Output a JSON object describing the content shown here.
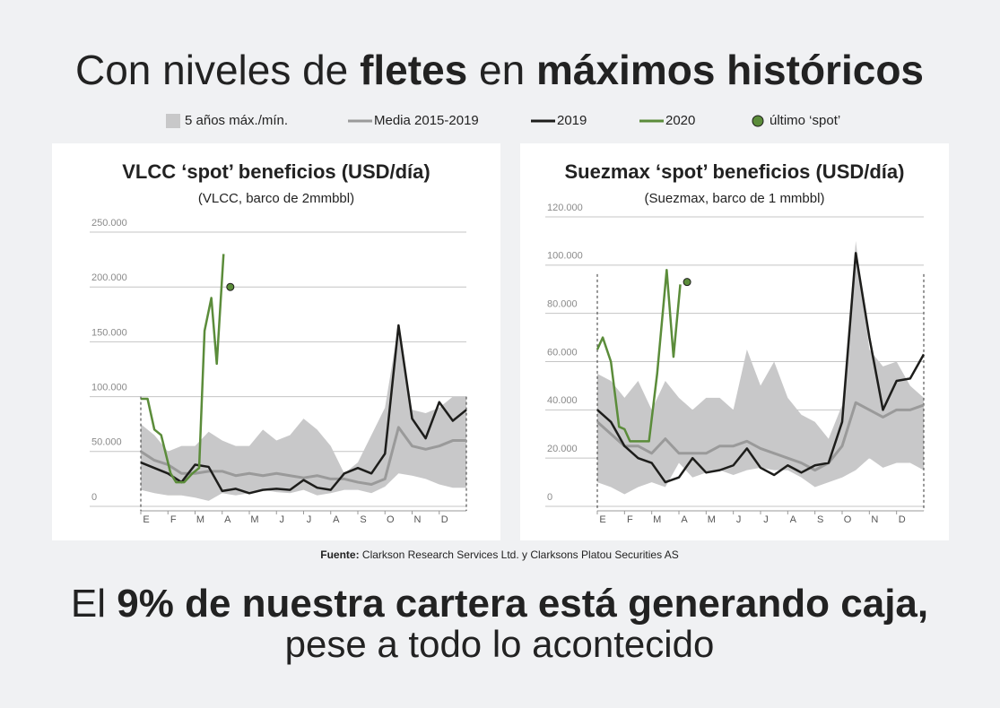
{
  "title": {
    "parts": [
      "Con niveles de ",
      "fletes",
      " en ",
      "máximos históricos"
    ]
  },
  "legend": [
    {
      "label": "5 años máx./mín.",
      "color": "#c8c8c9"
    },
    {
      "label": "Media 2015-2019",
      "color": "#9a9a9a"
    },
    {
      "label": "2019",
      "color": "#1d1d1b"
    },
    {
      "label": "2020",
      "color": "#5b8c3a"
    },
    {
      "label": "último ‘spot’",
      "color": "#5b8c3a"
    }
  ],
  "chart_data": [
    {
      "type": "line",
      "title": "VLCC ‘spot’ beneficios (USD/día)",
      "subtitle": "(VLCC, barco de 2mmbbl)",
      "xlim": [
        0,
        12
      ],
      "xticks": [
        {
          "value": 0,
          "label": "E"
        },
        {
          "value": 1,
          "label": "F"
        },
        {
          "value": 2,
          "label": "M"
        },
        {
          "value": 3,
          "label": "A"
        },
        {
          "value": 4,
          "label": "M"
        },
        {
          "value": 5,
          "label": "J"
        },
        {
          "value": 6,
          "label": "J"
        },
        {
          "value": 7,
          "label": "A"
        },
        {
          "value": 8,
          "label": "S"
        },
        {
          "value": 9,
          "label": "O"
        },
        {
          "value": 10,
          "label": "N"
        },
        {
          "value": 11,
          "label": "D"
        }
      ],
      "ylim": [
        0,
        250000
      ],
      "yticks": [
        0,
        {
          "value": 50000,
          "label": "50.000"
        },
        {
          "value": 100000,
          "label": "100.000"
        },
        {
          "value": 150000,
          "label": "150.000"
        },
        {
          "value": 200000,
          "label": "200.000"
        },
        {
          "value": 250000,
          "label": "250.000"
        }
      ],
      "x": [
        0,
        0.5,
        1,
        1.5,
        2,
        2.5,
        3,
        3.5,
        4,
        4.5,
        5,
        5.5,
        6,
        6.5,
        7,
        7.5,
        8,
        8.5,
        9,
        9.5,
        10,
        10.5,
        11,
        11.5,
        12
      ],
      "band": {
        "high": [
          75000,
          65000,
          50000,
          55000,
          55000,
          68000,
          60000,
          55000,
          55000,
          70000,
          60000,
          65000,
          80000,
          70000,
          55000,
          30000,
          40000,
          65000,
          90000,
          165000,
          88000,
          85000,
          90000,
          100000,
          100000
        ],
        "low": [
          15000,
          12000,
          10000,
          10000,
          8000,
          5000,
          12000,
          10000,
          12000,
          15000,
          13000,
          12000,
          15000,
          10000,
          12000,
          15000,
          15000,
          12000,
          18000,
          30000,
          28000,
          25000,
          20000,
          17000,
          17000
        ]
      },
      "average": [
        50000,
        42000,
        38000,
        30000,
        30000,
        32000,
        32000,
        28000,
        30000,
        28000,
        30000,
        28000,
        26000,
        28000,
        25000,
        25000,
        22000,
        20000,
        25000,
        72000,
        55000,
        52000,
        55000,
        60000,
        60000
      ],
      "y2019": [
        40000,
        35000,
        30000,
        22000,
        38000,
        36000,
        14000,
        16000,
        12000,
        15000,
        16000,
        15000,
        24000,
        17000,
        15000,
        30000,
        35000,
        30000,
        48000,
        165000,
        80000,
        62000,
        95000,
        78000,
        88000
      ],
      "y2020": {
        "x": [
          0,
          0.25,
          0.5,
          0.75,
          1.1,
          1.3,
          1.6,
          1.9,
          2.15,
          2.35,
          2.6,
          2.8,
          3.05
        ],
        "values": [
          98000,
          98000,
          70000,
          65000,
          30000,
          22000,
          22000,
          30000,
          35000,
          160000,
          190000,
          130000,
          230000
        ]
      },
      "last_spot": {
        "x": 3.3,
        "value": 200000
      }
    },
    {
      "type": "line",
      "title": "Suezmax ‘spot’ beneficios (USD/día)",
      "subtitle": "(Suezmax, barco de 1 mmbbl)",
      "xlim": [
        0,
        12
      ],
      "xticks": [
        {
          "value": 0,
          "label": "E"
        },
        {
          "value": 1,
          "label": "F"
        },
        {
          "value": 2,
          "label": "M"
        },
        {
          "value": 3,
          "label": "A"
        },
        {
          "value": 4,
          "label": "M"
        },
        {
          "value": 5,
          "label": "J"
        },
        {
          "value": 6,
          "label": "J"
        },
        {
          "value": 7,
          "label": "A"
        },
        {
          "value": 8,
          "label": "S"
        },
        {
          "value": 9,
          "label": "O"
        },
        {
          "value": 10,
          "label": "N"
        },
        {
          "value": 11,
          "label": "D"
        }
      ],
      "ylim": [
        0,
        120000
      ],
      "yticks": [
        0,
        {
          "value": 20000,
          "label": "20.000"
        },
        {
          "value": 40000,
          "label": "40.000"
        },
        {
          "value": 60000,
          "label": "60.000"
        },
        {
          "value": 80000,
          "label": "80.000"
        },
        {
          "value": 100000,
          "label": "100.000"
        },
        {
          "value": 120000,
          "label": "120.000"
        }
      ],
      "x": [
        0,
        0.5,
        1,
        1.5,
        2,
        2.5,
        3,
        3.5,
        4,
        4.5,
        5,
        5.5,
        6,
        6.5,
        7,
        7.5,
        8,
        8.5,
        9,
        9.5,
        10,
        10.5,
        11,
        11.5,
        12
      ],
      "band": {
        "high": [
          55000,
          52000,
          45000,
          52000,
          40000,
          52000,
          45000,
          40000,
          45000,
          45000,
          40000,
          65000,
          50000,
          60000,
          45000,
          38000,
          35000,
          28000,
          42000,
          110000,
          65000,
          58000,
          60000,
          50000,
          45000
        ],
        "low": [
          10000,
          8000,
          5000,
          8000,
          10000,
          8000,
          18000,
          12000,
          14000,
          15000,
          13000,
          15000,
          16000,
          15000,
          15000,
          12000,
          8000,
          10000,
          12000,
          15000,
          20000,
          16000,
          18000,
          18000,
          15000
        ]
      },
      "average": [
        35000,
        30000,
        25000,
        25000,
        22000,
        28000,
        22000,
        22000,
        22000,
        25000,
        25000,
        27000,
        24000,
        22000,
        20000,
        18000,
        15000,
        18000,
        25000,
        43000,
        40000,
        37000,
        40000,
        40000,
        42000
      ],
      "y2019": [
        40000,
        35000,
        25000,
        20000,
        18000,
        10000,
        12000,
        20000,
        14000,
        15000,
        17000,
        24000,
        16000,
        13000,
        17000,
        14000,
        17000,
        18000,
        35000,
        105000,
        70000,
        40000,
        52000,
        53000,
        63000
      ],
      "y2020": {
        "x": [
          0,
          0.2,
          0.5,
          0.8,
          1,
          1.2,
          1.5,
          1.9,
          2.2,
          2.55,
          2.8,
          3.05
        ],
        "values": [
          65000,
          70000,
          60000,
          33000,
          32000,
          27000,
          27000,
          27000,
          55000,
          98000,
          62000,
          92000
        ]
      },
      "last_spot": {
        "x": 3.3,
        "value": 93000
      }
    }
  ],
  "source": {
    "label": "Fuente:",
    "text": " Clarkson Research Services Ltd. y Clarksons Platou Securities AS"
  },
  "headline": {
    "parts": [
      "El ",
      "9% de nuestra cartera está generando caja,"
    ],
    "line2": "pese a todo lo acontecido"
  }
}
